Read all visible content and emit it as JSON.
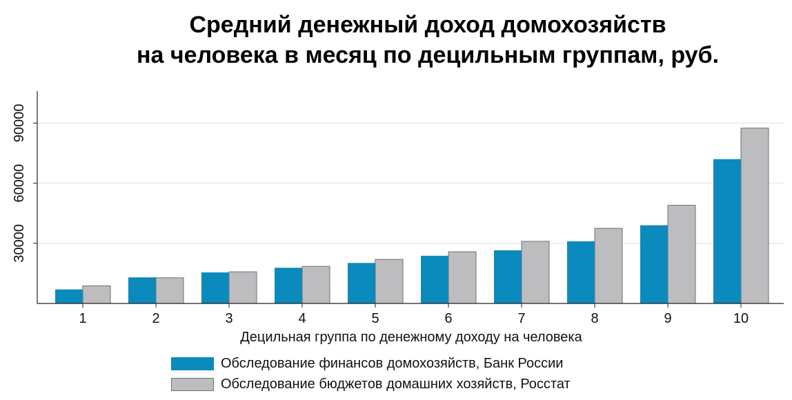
{
  "chart_data": {
    "type": "bar",
    "title_lines": [
      "Средний денежный доход домохозяйств",
      "на человека в месяц по децильным группам, руб."
    ],
    "xlabel": "Децильная группа по денежному доходу на человека",
    "ylabel": "",
    "categories": [
      "1",
      "2",
      "3",
      "4",
      "5",
      "6",
      "7",
      "8",
      "9",
      "10"
    ],
    "y_ticks": [
      30000,
      60000,
      90000
    ],
    "y_tick_labels": [
      "30000",
      "60000",
      "90000"
    ],
    "ylim": [
      0,
      106000
    ],
    "grid": true,
    "legend_position": "bottom",
    "series": [
      {
        "name": "Обследование финансов домохозяйств, Банк России",
        "color": "#0a8abd",
        "values": [
          7000,
          13000,
          15500,
          17800,
          20200,
          23800,
          26500,
          31000,
          39000,
          72000
        ]
      },
      {
        "name": "Обследование бюджетов домашних хозяйств, Росстат",
        "color": "#bdbdbf",
        "values": [
          8800,
          12800,
          15800,
          18500,
          22000,
          25800,
          31000,
          37500,
          49000,
          87500
        ]
      }
    ]
  }
}
